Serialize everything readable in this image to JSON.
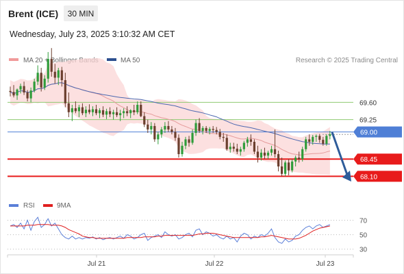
{
  "header": {
    "instrument": "Brent (ICE)",
    "timeframe": "30 MIN",
    "datetime": "Wednesday, July 23, 2025 3:10:32 AM CET",
    "credit": "Research © 2025 Trading Central"
  },
  "legend": {
    "ma20_label": "MA 20 + Bollinger Bands",
    "ma50_label": "MA 50",
    "rsi_label": "RSI",
    "rsi9_label": "9MA"
  },
  "colors": {
    "bullish": "#2f9c3a",
    "bearish": "#6b3f2e",
    "band_fill": "#fbd5d5",
    "ma20": "#e59b9b",
    "ma50": "#4c68b0",
    "resistance": "#8ec971",
    "current": "#4f7fd6",
    "support": "#e81b1b",
    "arrow": "#2e5c9a",
    "rsi": "#5b7fd8",
    "rsi9": "#e01f1f"
  },
  "chart_data": [
    {
      "type": "candlestick",
      "ylim": [
        67.55,
        70.3
      ],
      "x_ticks": [
        "Jul 21",
        "Jul 22",
        "Jul 23"
      ],
      "levels": [
        {
          "value": 69.6,
          "label": "69.60",
          "kind": "resistance"
        },
        {
          "value": 69.25,
          "label": "69.25",
          "kind": "resistance"
        },
        {
          "value": 69.0,
          "label": "69.00",
          "kind": "current"
        },
        {
          "value": 68.45,
          "label": "68.45",
          "kind": "support"
        },
        {
          "value": 68.1,
          "label": "68.10",
          "kind": "support"
        }
      ],
      "forecast": {
        "from": 69.0,
        "to": 68.05
      },
      "ohlc": [
        [
          69.83,
          69.92,
          69.72,
          69.81
        ],
        [
          69.81,
          69.95,
          69.7,
          69.74
        ],
        [
          69.74,
          69.88,
          69.65,
          69.86
        ],
        [
          69.86,
          69.98,
          69.78,
          69.93
        ],
        [
          69.93,
          70.02,
          69.75,
          69.8
        ],
        [
          69.8,
          69.85,
          69.62,
          69.68
        ],
        [
          69.68,
          69.9,
          69.6,
          69.84
        ],
        [
          69.84,
          70.08,
          69.8,
          70.02
        ],
        [
          70.02,
          70.35,
          69.95,
          70.2
        ],
        [
          70.2,
          70.3,
          69.82,
          69.9
        ],
        [
          69.9,
          70.15,
          69.85,
          70.08
        ],
        [
          70.08,
          70.62,
          70.0,
          70.48
        ],
        [
          70.48,
          70.7,
          70.12,
          70.22
        ],
        [
          70.22,
          70.38,
          69.98,
          70.1
        ],
        [
          70.1,
          70.3,
          69.95,
          70.25
        ],
        [
          70.25,
          70.32,
          69.92,
          70.05
        ],
        [
          70.05,
          70.2,
          69.5,
          69.58
        ],
        [
          69.58,
          69.8,
          69.3,
          69.4
        ],
        [
          69.4,
          69.55,
          69.22,
          69.48
        ],
        [
          69.48,
          69.62,
          69.38,
          69.42
        ],
        [
          69.42,
          69.55,
          69.3,
          69.5
        ],
        [
          69.5,
          69.58,
          69.34,
          69.38
        ],
        [
          69.38,
          69.52,
          69.3,
          69.45
        ],
        [
          69.45,
          69.56,
          69.36,
          69.4
        ],
        [
          69.4,
          69.52,
          69.32,
          69.46
        ],
        [
          69.46,
          69.55,
          69.34,
          69.38
        ],
        [
          69.38,
          69.48,
          69.28,
          69.44
        ],
        [
          69.44,
          69.52,
          69.3,
          69.35
        ],
        [
          69.35,
          69.47,
          69.26,
          69.42
        ],
        [
          69.42,
          69.5,
          69.3,
          69.36
        ],
        [
          69.36,
          69.45,
          69.25,
          69.4
        ],
        [
          69.4,
          69.5,
          69.3,
          69.34
        ],
        [
          69.34,
          69.45,
          69.22,
          69.38
        ],
        [
          69.38,
          69.48,
          69.28,
          69.42
        ],
        [
          69.42,
          69.52,
          69.32,
          69.38
        ],
        [
          69.38,
          69.46,
          69.28,
          69.44
        ],
        [
          69.44,
          69.55,
          69.34,
          69.4
        ],
        [
          69.4,
          69.62,
          69.36,
          69.55
        ],
        [
          69.55,
          69.62,
          69.3,
          69.32
        ],
        [
          69.32,
          69.4,
          69.1,
          69.15
        ],
        [
          69.15,
          69.25,
          68.98,
          69.05
        ],
        [
          69.05,
          69.2,
          68.95,
          69.12
        ],
        [
          69.12,
          69.18,
          68.8,
          68.85
        ],
        [
          68.85,
          69.0,
          68.75,
          68.95
        ],
        [
          68.95,
          69.1,
          68.88,
          69.05
        ],
        [
          69.05,
          69.2,
          68.98,
          69.12
        ],
        [
          69.12,
          69.22,
          69.0,
          69.05
        ],
        [
          69.05,
          69.12,
          68.95,
          69.0
        ],
        [
          69.0,
          69.08,
          68.82,
          68.88
        ],
        [
          68.88,
          68.95,
          68.48,
          68.55
        ],
        [
          68.55,
          68.8,
          68.5,
          68.72
        ],
        [
          68.72,
          68.9,
          68.65,
          68.85
        ],
        [
          68.85,
          68.92,
          68.7,
          68.78
        ],
        [
          68.78,
          69.05,
          68.74,
          68.98
        ],
        [
          68.98,
          69.25,
          68.92,
          69.18
        ],
        [
          69.18,
          69.28,
          68.98,
          69.02
        ],
        [
          69.02,
          69.12,
          68.95,
          69.08
        ],
        [
          69.08,
          69.12,
          68.98,
          69.02
        ],
        [
          69.02,
          69.1,
          68.95,
          69.06
        ],
        [
          69.06,
          69.12,
          68.98,
          69.04
        ],
        [
          69.04,
          69.1,
          68.95,
          69.0
        ],
        [
          69.0,
          69.06,
          68.85,
          68.9
        ],
        [
          68.9,
          68.98,
          68.8,
          68.88
        ],
        [
          68.88,
          68.95,
          68.62,
          68.65
        ],
        [
          68.65,
          68.78,
          68.58,
          68.7
        ],
        [
          68.7,
          68.78,
          68.6,
          68.66
        ],
        [
          68.66,
          68.76,
          68.55,
          68.6
        ],
        [
          68.6,
          68.7,
          68.52,
          68.65
        ],
        [
          68.65,
          68.82,
          68.6,
          68.78
        ],
        [
          68.78,
          68.9,
          68.7,
          68.85
        ],
        [
          68.85,
          68.95,
          68.72,
          68.8
        ],
        [
          68.8,
          68.85,
          68.55,
          68.6
        ],
        [
          68.6,
          68.72,
          68.38,
          68.48
        ],
        [
          68.48,
          68.65,
          68.42,
          68.58
        ],
        [
          68.58,
          68.68,
          68.45,
          68.52
        ],
        [
          68.52,
          68.62,
          68.45,
          68.58
        ],
        [
          68.58,
          68.72,
          68.52,
          68.65
        ],
        [
          68.65,
          69.05,
          68.48,
          68.55
        ],
        [
          68.55,
          68.62,
          68.2,
          68.3
        ],
        [
          68.3,
          68.48,
          68.1,
          68.15
        ],
        [
          68.15,
          68.42,
          68.1,
          68.38
        ],
        [
          68.38,
          68.45,
          68.12,
          68.22
        ],
        [
          68.22,
          68.45,
          68.18,
          68.4
        ],
        [
          68.4,
          68.52,
          68.3,
          68.48
        ],
        [
          68.48,
          68.6,
          68.38,
          68.45
        ],
        [
          68.45,
          68.7,
          68.4,
          68.65
        ],
        [
          68.65,
          68.9,
          68.6,
          68.85
        ],
        [
          68.85,
          68.95,
          68.72,
          68.8
        ],
        [
          68.8,
          68.94,
          68.74,
          68.9
        ],
        [
          68.9,
          68.95,
          68.8,
          68.92
        ],
        [
          68.92,
          68.96,
          68.78,
          68.84
        ],
        [
          68.84,
          68.9,
          68.72,
          68.76
        ],
        [
          68.76,
          68.95,
          68.72,
          68.92
        ],
        [
          68.92,
          69.02,
          68.85,
          68.95
        ]
      ]
    },
    {
      "type": "line",
      "title": "RSI",
      "y_ticks": [
        70,
        50,
        30
      ],
      "ylim": [
        25,
        78
      ],
      "series": [
        {
          "name": "RSI",
          "values": [
            62,
            64,
            60,
            66,
            58,
            70,
            56,
            68,
            74,
            60,
            64,
            72,
            62,
            66,
            58,
            50,
            46,
            44,
            48,
            44,
            46,
            44,
            46,
            45,
            47,
            44,
            46,
            43,
            45,
            46,
            44,
            46,
            48,
            45,
            50,
            48,
            44,
            46,
            50,
            52,
            42,
            46,
            48,
            50,
            46,
            54,
            50,
            48,
            50,
            44,
            46,
            50,
            52,
            47,
            56,
            58,
            50,
            54,
            52,
            48,
            50,
            46,
            44,
            48,
            44,
            46,
            40,
            48,
            52,
            50,
            44,
            48,
            46,
            50,
            48,
            52,
            58,
            46,
            40,
            38,
            44,
            40,
            42,
            48,
            50,
            56,
            60,
            62,
            58,
            62,
            64,
            60,
            62,
            64
          ]
        },
        {
          "name": "9MA",
          "values": [
            62,
            62,
            62,
            62,
            62,
            63,
            63,
            63,
            64,
            64,
            64,
            64,
            63,
            63,
            63,
            62,
            60,
            57,
            55,
            53,
            51,
            48,
            47,
            46,
            46,
            45,
            45,
            45,
            45,
            45,
            45,
            45,
            45,
            45,
            46,
            46,
            46,
            46,
            46,
            47,
            47,
            47,
            47,
            48,
            48,
            49,
            49,
            49,
            49,
            49,
            49,
            49,
            49,
            49,
            50,
            51,
            51,
            52,
            52,
            52,
            51,
            50,
            49,
            48,
            47,
            46,
            46,
            46,
            46,
            46,
            46,
            46,
            46,
            47,
            47,
            48,
            49,
            48,
            47,
            46,
            45,
            44,
            44,
            44,
            45,
            47,
            49,
            52,
            55,
            57,
            59,
            60,
            61,
            62
          ]
        }
      ]
    }
  ]
}
